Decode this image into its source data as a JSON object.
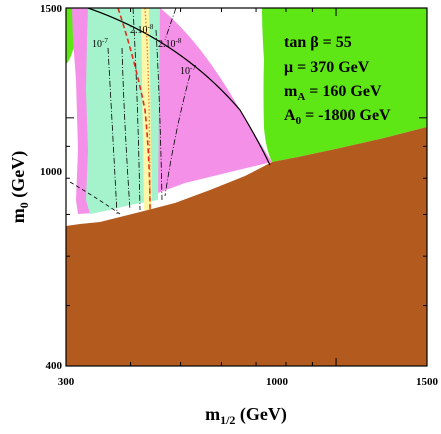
{
  "chart_data": {
    "type": "area",
    "xlabel_main": "m",
    "xlabel_sub": "1/2",
    "xlabel_unit": " (GeV)",
    "ylabel_main": "m",
    "ylabel_sub": "0",
    "ylabel_unit": " (GeV)",
    "xlim": [
      300,
      1500
    ],
    "ylim": [
      400,
      1500
    ],
    "x_tick_labels": [
      "300",
      "1000",
      "1500"
    ],
    "y_tick_labels": [
      "400",
      "1000",
      "1500"
    ],
    "params": [
      {
        "text": "tan β = 55"
      },
      {
        "text": "μ = 370 GeV"
      },
      {
        "main": "m",
        "sub": "A",
        "rest": " = 160 GeV"
      },
      {
        "main": "A",
        "sub": "0",
        "rest": " = -1800 GeV"
      }
    ],
    "contour_labels": [
      {
        "base": "10",
        "exp": "-7"
      },
      {
        "base": "2.10",
        "exp": "-8"
      },
      {
        "base": "2.10",
        "exp": "-8"
      },
      {
        "base": "10",
        "exp": "-7"
      }
    ],
    "region_colors": {
      "excluded_brown": "#b35a1f",
      "wmap_green": "#5ee615",
      "pink": "#f590e8",
      "light_green": "#a5f3cc",
      "light_yellow": "#fff7a8"
    }
  }
}
